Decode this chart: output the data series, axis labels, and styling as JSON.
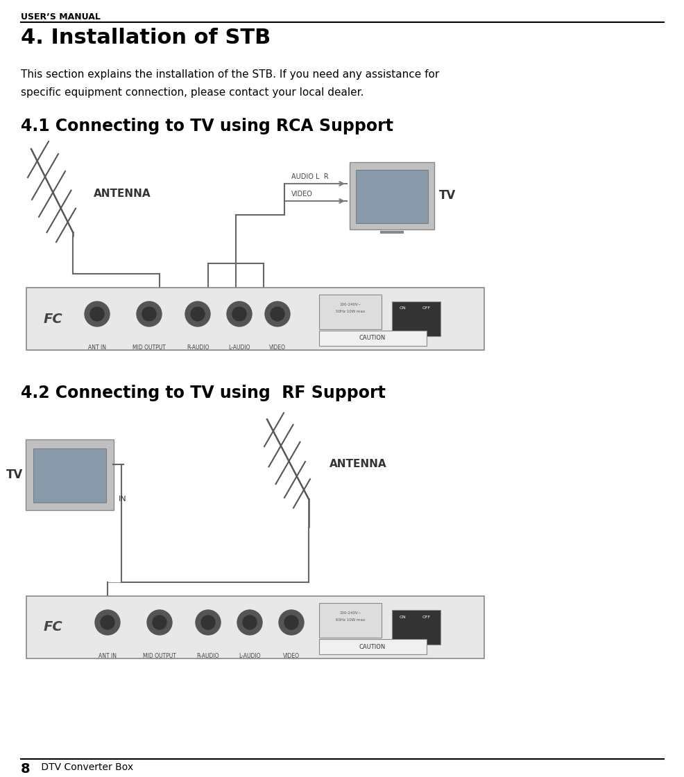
{
  "header_text": "USER’S MANUAL",
  "title": "4. Installation of STB",
  "body_text_line1": "This section explains the installation of the STB. If you need any assistance for",
  "body_text_line2": "specific equipment connection, please contact your local dealer.",
  "section1_title": "4.1 Connecting to TV using RCA Support",
  "section2_title": "4.2 Connecting to TV using  RF Support",
  "footer_page": "8",
  "footer_text": " DTV Converter Box",
  "bg_color": "#ffffff",
  "text_color": "#000000",
  "header_fontsize": 9,
  "title_fontsize": 22,
  "body_fontsize": 11,
  "section_fontsize": 17,
  "footer_fontsize": 10
}
